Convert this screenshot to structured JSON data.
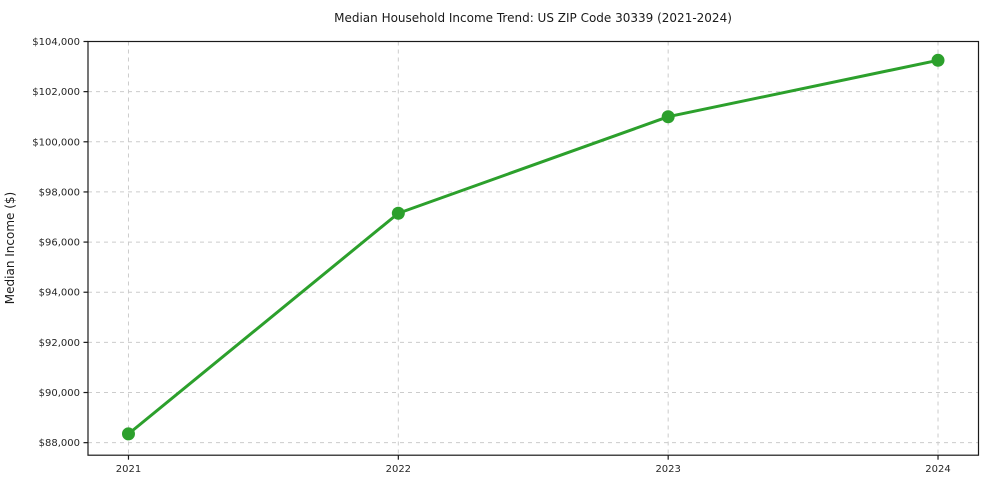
{
  "page": {
    "background_color": "#ffffff"
  },
  "chart_data": {
    "type": "line",
    "title": "Median Household Income Trend: US ZIP Code 30339 (2021-2024)",
    "xlabel": "",
    "ylabel": "Median Income ($)",
    "categories": [
      2021,
      2022,
      2023,
      2024
    ],
    "x_tick_labels": [
      "2021",
      "2022",
      "2023",
      "2024"
    ],
    "series": [
      {
        "name": "Median household income",
        "values": [
          88350,
          97150,
          101000,
          103250
        ],
        "color": "#2ca02c",
        "marker": "circle",
        "line_width": 3,
        "marker_radius": 6.5
      }
    ],
    "y_ticks": [
      88000,
      90000,
      92000,
      94000,
      96000,
      98000,
      100000,
      102000,
      104000
    ],
    "y_tick_labels": [
      "$88,000",
      "$90,000",
      "$92,000",
      "$94,000",
      "$96,000",
      "$98,000",
      "$100,000",
      "$102,000",
      "$104,000"
    ],
    "xlim": [
      2020.85,
      2024.15
    ],
    "ylim": [
      87500,
      104000
    ],
    "grid": true,
    "grid_style": "dashed",
    "legend": false,
    "colors": {
      "grid": "#cccccc",
      "axis": "#1a1a1a",
      "tick_text": "#262626",
      "title_text": "#1a1a1a"
    }
  }
}
